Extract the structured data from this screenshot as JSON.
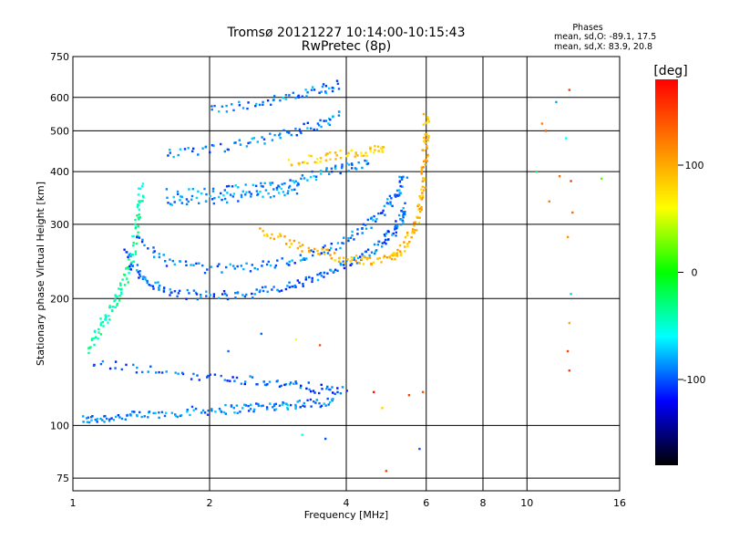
{
  "chart_data": {
    "type": "scatter",
    "title": "Tromsø 20121227 10:14:00-10:15:43",
    "subtitle": "RwPretec (8p)",
    "xlabel": "Frequency [MHz]",
    "ylabel": "Stationary phase Virtual Height [km]",
    "x_scale": "log",
    "y_scale": "log",
    "xlim": [
      1,
      16
    ],
    "ylim": [
      70,
      750
    ],
    "x_ticks": [
      1,
      2,
      4,
      6,
      8,
      10,
      16
    ],
    "y_ticks": [
      75,
      100,
      200,
      300,
      400,
      500,
      600,
      750
    ],
    "grid": true,
    "stats_header": "Phases",
    "stats_line1": "mean, sd,O: -89.1, 17.5",
    "stats_line2": "mean, sd,X:  83.9, 20.8",
    "colorbar": {
      "label": "[deg]",
      "range": [
        -180,
        180
      ],
      "ticks": [
        100,
        0,
        -100
      ],
      "tick_labels": [
        "100",
        "0",
        "-100"
      ],
      "colors": [
        "#ff0000",
        "#ff8000",
        "#ffff00",
        "#00ff00",
        "#00ffff",
        "#0000ff",
        "#000000"
      ]
    },
    "traces": [
      {
        "pts": [
          [
            1.05,
            103
          ],
          [
            1.15,
            104
          ],
          [
            1.3,
            105
          ],
          [
            1.5,
            106
          ],
          [
            1.8,
            108
          ],
          [
            2.1,
            109
          ],
          [
            2.4,
            110
          ],
          [
            2.7,
            111
          ],
          [
            3.0,
            112
          ],
          [
            3.4,
            113
          ],
          [
            3.8,
            115
          ]
        ],
        "phase": -90
      },
      {
        "pts": [
          [
            1.08,
            150
          ],
          [
            1.15,
            170
          ],
          [
            1.2,
            185
          ],
          [
            1.25,
            200
          ],
          [
            1.3,
            220
          ],
          [
            1.35,
            250
          ],
          [
            1.38,
            290
          ],
          [
            1.4,
            330
          ],
          [
            1.42,
            370
          ]
        ],
        "phase": -40
      },
      {
        "pts": [
          [
            1.3,
            260
          ],
          [
            1.4,
            230
          ],
          [
            1.5,
            215
          ],
          [
            1.7,
            205
          ],
          [
            2.0,
            203
          ],
          [
            2.4,
            205
          ],
          [
            2.8,
            210
          ],
          [
            3.2,
            218
          ],
          [
            3.6,
            228
          ],
          [
            4.0,
            240
          ],
          [
            4.4,
            255
          ],
          [
            4.8,
            272
          ],
          [
            5.1,
            290
          ],
          [
            5.3,
            310
          ],
          [
            5.4,
            330
          ]
        ],
        "phase": -95
      },
      {
        "pts": [
          [
            1.4,
            275
          ],
          [
            1.6,
            245
          ],
          [
            2.0,
            235
          ],
          [
            2.5,
            238
          ],
          [
            3.0,
            245
          ],
          [
            3.5,
            258
          ],
          [
            4.0,
            275
          ],
          [
            4.5,
            300
          ],
          [
            4.9,
            330
          ],
          [
            5.2,
            360
          ],
          [
            5.4,
            395
          ]
        ],
        "phase": -92
      },
      {
        "pts": [
          [
            2.6,
            290
          ],
          [
            3.0,
            270
          ],
          [
            3.5,
            258
          ],
          [
            4.0,
            248
          ],
          [
            4.5,
            245
          ],
          [
            5.0,
            250
          ],
          [
            5.3,
            262
          ],
          [
            5.6,
            285
          ],
          [
            5.8,
            320
          ],
          [
            5.9,
            360
          ],
          [
            5.95,
            420
          ],
          [
            6.0,
            480
          ],
          [
            6.0,
            560
          ]
        ],
        "phase": 95
      },
      {
        "pts": [
          [
            1.6,
            355
          ],
          [
            2.0,
            358
          ],
          [
            2.5,
            365
          ],
          [
            3.0,
            378
          ],
          [
            3.5,
            395
          ],
          [
            4.0,
            408
          ],
          [
            4.5,
            420
          ]
        ],
        "phase": -88
      },
      {
        "pts": [
          [
            1.6,
            335
          ],
          [
            2.0,
            340
          ],
          [
            2.4,
            350
          ],
          [
            2.8,
            358
          ],
          [
            3.2,
            365
          ]
        ],
        "phase": -85
      },
      {
        "pts": [
          [
            1.6,
            440
          ],
          [
            2.0,
            450
          ],
          [
            2.5,
            470
          ],
          [
            3.0,
            495
          ],
          [
            3.5,
            520
          ],
          [
            3.9,
            545
          ]
        ],
        "phase": -90
      },
      {
        "pts": [
          [
            2.0,
            560
          ],
          [
            2.5,
            580
          ],
          [
            3.0,
            600
          ],
          [
            3.5,
            625
          ],
          [
            3.9,
            645
          ]
        ],
        "phase": -90
      },
      {
        "pts": [
          [
            3.0,
            420
          ],
          [
            3.5,
            430
          ],
          [
            4.0,
            440
          ],
          [
            4.5,
            448
          ],
          [
            4.9,
            452
          ]
        ],
        "phase": 80
      },
      {
        "pts": [
          [
            1.1,
            140
          ],
          [
            1.5,
            135
          ],
          [
            2.0,
            130
          ],
          [
            2.5,
            128
          ],
          [
            3.0,
            125
          ],
          [
            3.5,
            122
          ],
          [
            4.0,
            120
          ]
        ],
        "phase": -100
      }
    ],
    "scattered_points": [
      {
        "x": 2.2,
        "y": 150,
        "phase": -95
      },
      {
        "x": 2.6,
        "y": 165,
        "phase": -95
      },
      {
        "x": 3.1,
        "y": 160,
        "phase": 60
      },
      {
        "x": 3.5,
        "y": 155,
        "phase": 140
      },
      {
        "x": 4.6,
        "y": 120,
        "phase": 170
      },
      {
        "x": 5.5,
        "y": 118,
        "phase": 150
      },
      {
        "x": 5.9,
        "y": 120,
        "phase": 140
      },
      {
        "x": 4.8,
        "y": 110,
        "phase": 80
      },
      {
        "x": 3.2,
        "y": 95,
        "phase": -60
      },
      {
        "x": 3.6,
        "y": 93,
        "phase": -100
      },
      {
        "x": 4.9,
        "y": 78,
        "phase": 150
      },
      {
        "x": 5.8,
        "y": 88,
        "phase": -100
      },
      {
        "x": 12.4,
        "y": 625,
        "phase": 150
      },
      {
        "x": 12.2,
        "y": 480,
        "phase": -60
      },
      {
        "x": 11.8,
        "y": 390,
        "phase": 130
      },
      {
        "x": 12.5,
        "y": 380,
        "phase": 150
      },
      {
        "x": 10.8,
        "y": 520,
        "phase": 120
      },
      {
        "x": 11.0,
        "y": 500,
        "phase": 140
      },
      {
        "x": 11.2,
        "y": 340,
        "phase": 120
      },
      {
        "x": 12.6,
        "y": 320,
        "phase": 130
      },
      {
        "x": 12.3,
        "y": 280,
        "phase": 110
      },
      {
        "x": 12.5,
        "y": 205,
        "phase": -70
      },
      {
        "x": 12.4,
        "y": 175,
        "phase": 100
      },
      {
        "x": 12.3,
        "y": 150,
        "phase": 150
      },
      {
        "x": 12.4,
        "y": 135,
        "phase": 150
      },
      {
        "x": 14.6,
        "y": 385,
        "phase": 20
      },
      {
        "x": 10.5,
        "y": 400,
        "phase": -20
      },
      {
        "x": 11.6,
        "y": 585,
        "phase": -80
      }
    ]
  }
}
